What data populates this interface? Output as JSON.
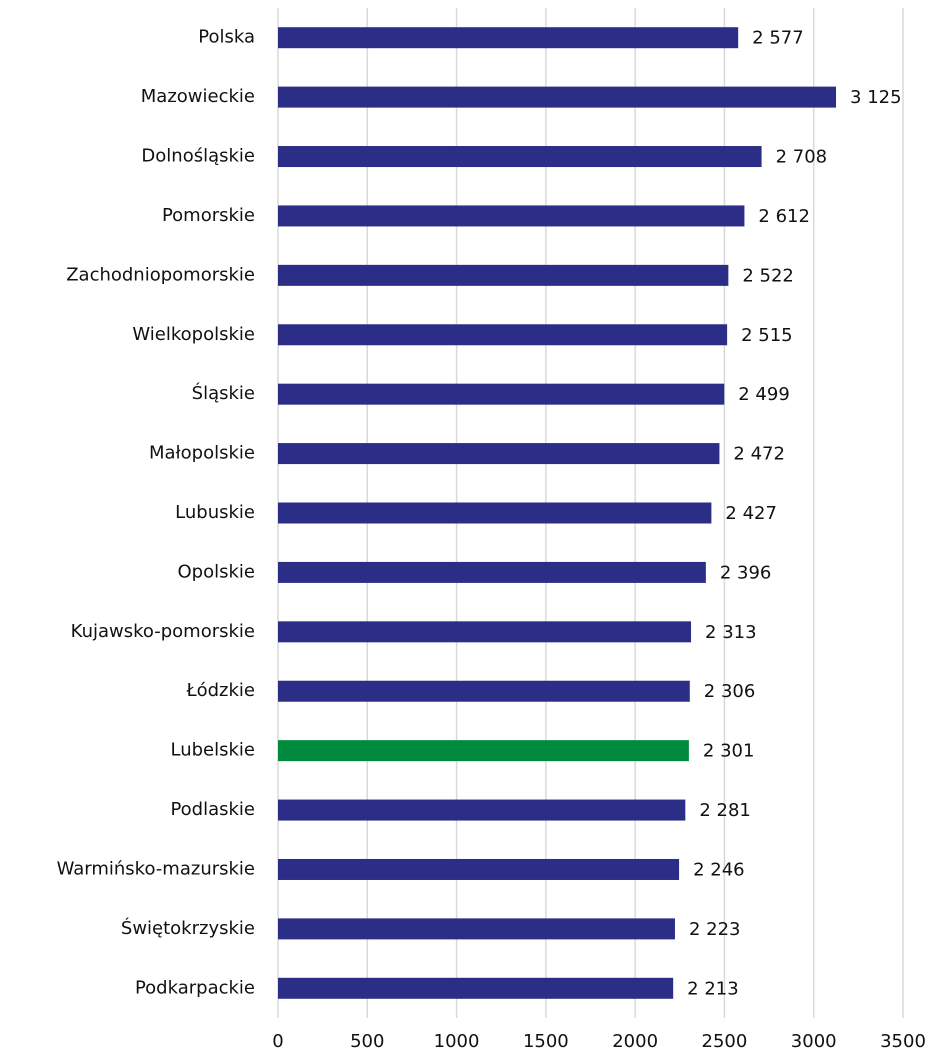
{
  "chart_data": {
    "type": "hbar",
    "categories": [
      "Polska",
      "Mazowieckie",
      "Dolnośląskie",
      "Pomorskie",
      "Zachodniopomorskie",
      "Wielkopolskie",
      "Śląskie",
      "Małopolskie",
      "Lubuskie",
      "Opolskie",
      "Kujawsko-pomorskie",
      "Łódzkie",
      "Lubelskie",
      "Podlaskie",
      "Warmińsko-mazurskie",
      "Świętokrzyskie",
      "Podkarpackie"
    ],
    "values": [
      2577,
      3125,
      2708,
      2612,
      2522,
      2515,
      2499,
      2472,
      2427,
      2396,
      2313,
      2306,
      2301,
      2281,
      2246,
      2223,
      2213
    ],
    "value_labels": [
      "2 577",
      "3 125",
      "2 708",
      "2 612",
      "2 522",
      "2 515",
      "2 499",
      "2 472",
      "2 427",
      "2 396",
      "2 313",
      "2 306",
      "2 301",
      "2 281",
      "2 246",
      "2 223",
      "2 213"
    ],
    "colors": [
      "#2b2d87",
      "#2b2d87",
      "#2b2d87",
      "#2b2d87",
      "#2b2d87",
      "#2b2d87",
      "#2b2d87",
      "#2b2d87",
      "#2b2d87",
      "#2b2d87",
      "#2b2d87",
      "#2b2d87",
      "#008a3e",
      "#2b2d87",
      "#2b2d87",
      "#2b2d87",
      "#2b2d87"
    ],
    "xlim": [
      0,
      3500
    ],
    "xticks": [
      0,
      500,
      1000,
      1500,
      2000,
      2500,
      3000,
      3500
    ],
    "grid": true
  }
}
